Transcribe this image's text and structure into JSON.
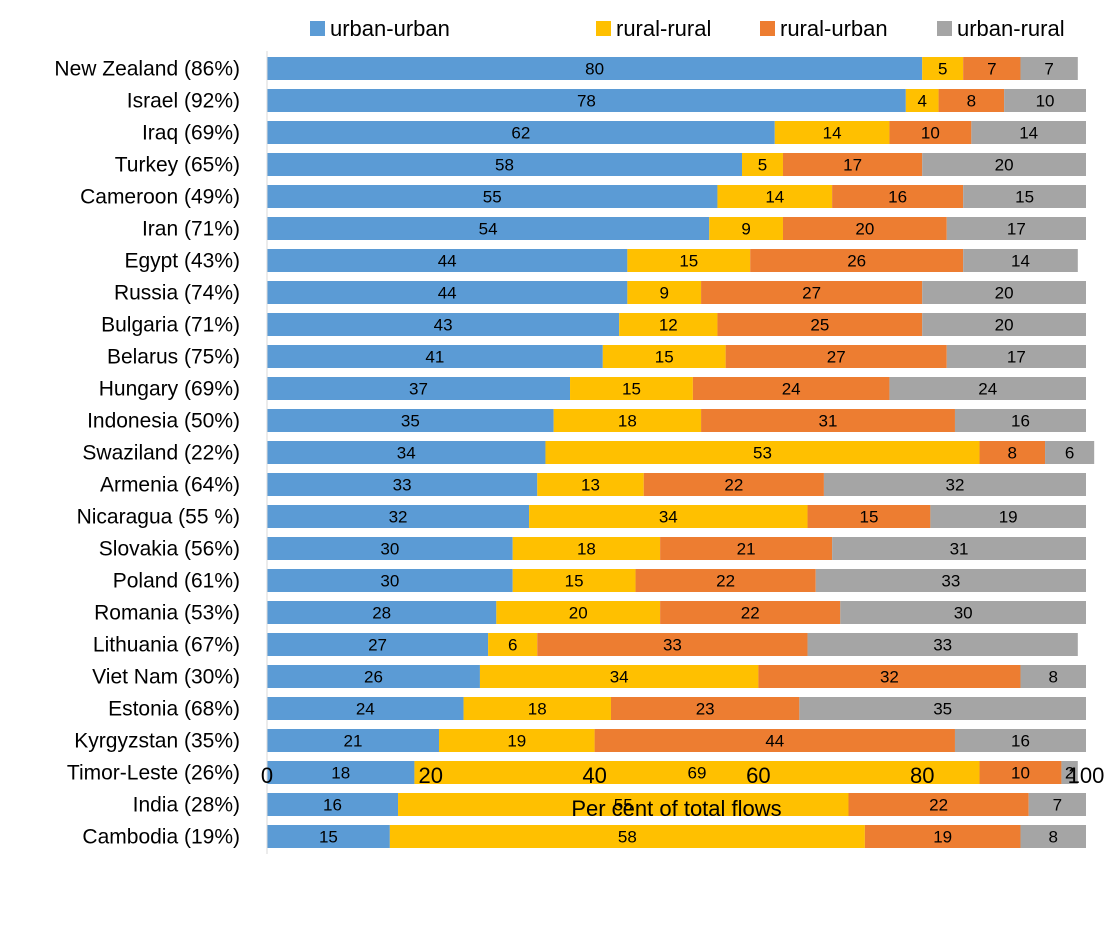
{
  "chart_data": {
    "type": "bar",
    "orientation": "horizontal",
    "stacked": true,
    "title": "",
    "xlabel": "Per cent of total flows",
    "ylabel": "",
    "xlim": [
      0,
      100
    ],
    "xticks": [
      0,
      20,
      40,
      60,
      80,
      100
    ],
    "grid": false,
    "legend_position": "top",
    "categories": [
      "New Zealand (86%)",
      "Israel (92%)",
      "Iraq (69%)",
      "Turkey (65%)",
      "Cameroon (49%)",
      "Iran (71%)",
      "Egypt (43%)",
      "Russia (74%)",
      "Bulgaria (71%)",
      "Belarus (75%)",
      "Hungary (69%)",
      "Indonesia (50%)",
      "Swaziland (22%)",
      "Armenia (64%)",
      "Nicaragua (55 %)",
      "Slovakia (56%)",
      "Poland (61%)",
      "Romania (53%)",
      "Lithuania (67%)",
      "Viet Nam (30%)",
      "Estonia (68%)",
      "Kyrgyzstan (35%)",
      "Timor-Leste (26%)",
      "India (28%)",
      "Cambodia (19%)"
    ],
    "series": [
      {
        "name": "urban-urban",
        "color": "#5b9bd5",
        "values": [
          80,
          78,
          62,
          58,
          55,
          54,
          44,
          44,
          43,
          41,
          37,
          35,
          34,
          33,
          32,
          30,
          30,
          28,
          27,
          26,
          24,
          21,
          18,
          16,
          15
        ]
      },
      {
        "name": "rural-rural",
        "color": "#ffc000",
        "values": [
          5,
          4,
          14,
          5,
          14,
          9,
          15,
          9,
          12,
          15,
          15,
          18,
          53,
          13,
          34,
          18,
          15,
          20,
          6,
          34,
          18,
          19,
          69,
          55,
          58
        ]
      },
      {
        "name": "rural-urban",
        "color": "#ed7d31",
        "values": [
          7,
          8,
          10,
          17,
          16,
          20,
          26,
          27,
          25,
          27,
          24,
          31,
          8,
          22,
          15,
          21,
          22,
          22,
          33,
          32,
          23,
          44,
          10,
          22,
          19
        ]
      },
      {
        "name": "urban-rural",
        "color": "#a5a5a5",
        "values": [
          7,
          10,
          14,
          20,
          15,
          17,
          14,
          20,
          20,
          17,
          24,
          16,
          6,
          32,
          19,
          31,
          33,
          30,
          33,
          8,
          35,
          16,
          2,
          7,
          8
        ]
      }
    ]
  }
}
